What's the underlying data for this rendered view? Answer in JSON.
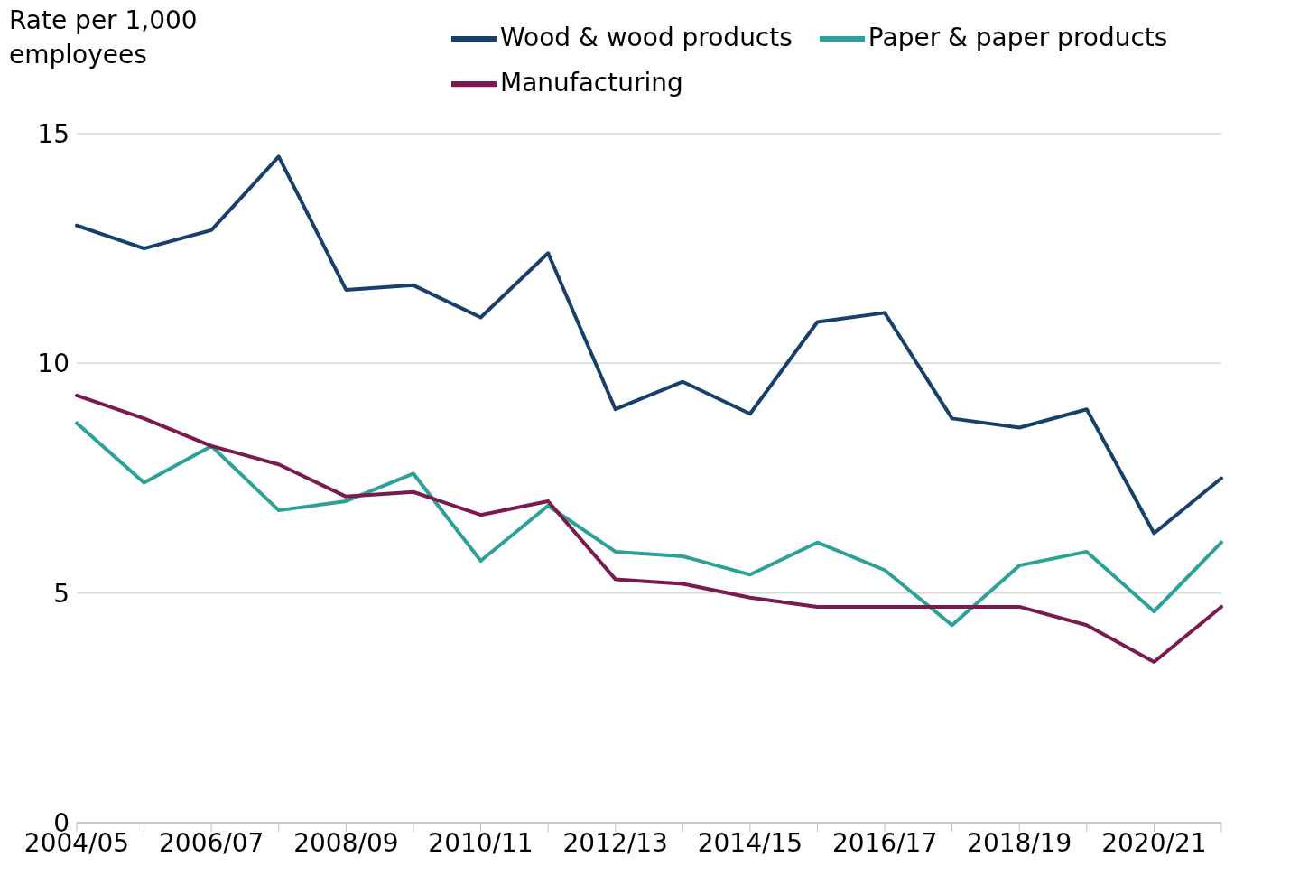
{
  "chart_data": {
    "type": "line",
    "ylabel": "Rate per 1,000 employees",
    "categories": [
      "2004/05",
      null,
      "2006/07",
      null,
      "2008/09",
      null,
      "2010/11",
      null,
      "2012/13",
      null,
      "2014/15",
      null,
      "2016/17",
      null,
      "2018/19",
      null,
      "2020/21",
      null
    ],
    "series": [
      {
        "name": "Wood & wood products",
        "color": "#17406d",
        "values": [
          13.0,
          12.5,
          12.9,
          14.5,
          11.6,
          11.7,
          11.0,
          12.4,
          9.0,
          9.6,
          8.9,
          10.9,
          11.1,
          8.8,
          8.6,
          9.0,
          6.3,
          7.5
        ]
      },
      {
        "name": "Paper & paper products",
        "color": "#2ca197",
        "values": [
          8.7,
          7.4,
          8.2,
          6.8,
          7.0,
          7.6,
          5.7,
          6.9,
          5.9,
          5.8,
          5.4,
          6.1,
          5.5,
          4.3,
          5.6,
          5.9,
          4.6,
          6.1
        ]
      },
      {
        "name": "Manufacturing",
        "color": "#7a1a4e",
        "values": [
          9.3,
          8.8,
          8.2,
          7.8,
          7.1,
          7.2,
          6.7,
          7.0,
          5.3,
          5.2,
          4.9,
          4.7,
          4.7,
          4.7,
          4.7,
          4.3,
          3.5,
          4.7
        ]
      }
    ],
    "ylim": [
      0,
      15
    ],
    "yticks": [
      0,
      5,
      10,
      15
    ],
    "grid": "y",
    "legend": "top right",
    "marker": "none",
    "line_style": "solid"
  }
}
